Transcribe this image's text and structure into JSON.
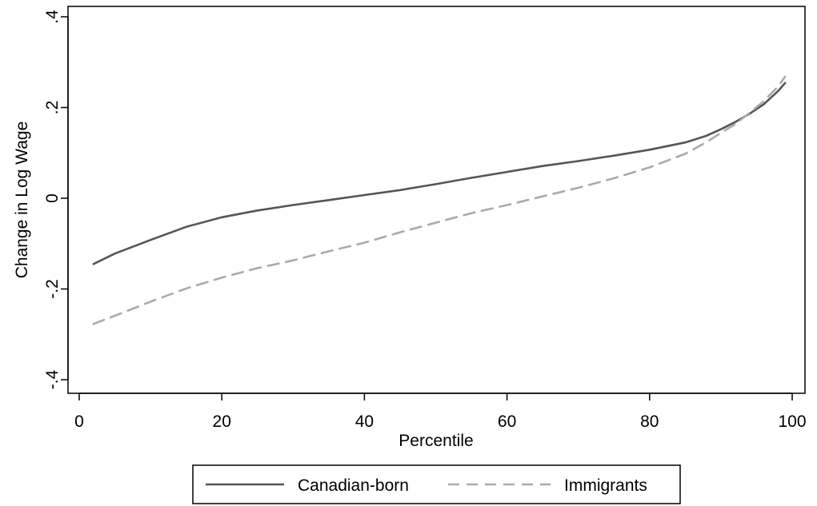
{
  "chart_data": {
    "type": "line",
    "title": "",
    "xlabel": "Percentile",
    "ylabel": "Change in Log Wage",
    "xlim": [
      0,
      100
    ],
    "ylim": [
      -0.4,
      0.4
    ],
    "x_ticks": [
      0,
      20,
      40,
      60,
      80,
      100
    ],
    "x_tick_labels": [
      "0",
      "20",
      "40",
      "60",
      "80",
      "100"
    ],
    "y_ticks": [
      -0.4,
      -0.2,
      0,
      0.2,
      0.4
    ],
    "y_tick_labels": [
      "-.4",
      "-.2",
      "0",
      ".2",
      ".4"
    ],
    "grid": false,
    "legend_position": "bottom",
    "series": [
      {
        "name": "Canadian-born",
        "color": "#555555",
        "style": "solid",
        "x": [
          2,
          5,
          10,
          15,
          20,
          25,
          30,
          35,
          40,
          45,
          50,
          55,
          60,
          65,
          70,
          75,
          80,
          85,
          88,
          90,
          92,
          94,
          96,
          98,
          99
        ],
        "y": [
          -0.145,
          -0.122,
          -0.092,
          -0.063,
          -0.042,
          -0.027,
          -0.015,
          -0.004,
          0.007,
          0.018,
          0.031,
          0.045,
          0.058,
          0.071,
          0.082,
          0.094,
          0.107,
          0.123,
          0.138,
          0.152,
          0.168,
          0.186,
          0.207,
          0.236,
          0.254
        ]
      },
      {
        "name": "Immigrants",
        "color": "#aaaaaa",
        "style": "dashed",
        "x": [
          2,
          5,
          10,
          15,
          20,
          25,
          30,
          35,
          40,
          45,
          50,
          55,
          60,
          65,
          70,
          75,
          80,
          85,
          88,
          90,
          92,
          94,
          96,
          98,
          99
        ],
        "y": [
          -0.277,
          -0.259,
          -0.228,
          -0.199,
          -0.175,
          -0.154,
          -0.137,
          -0.117,
          -0.098,
          -0.075,
          -0.054,
          -0.033,
          -0.015,
          0.004,
          0.023,
          0.044,
          0.068,
          0.098,
          0.124,
          0.144,
          0.163,
          0.188,
          0.214,
          0.246,
          0.268
        ]
      }
    ]
  }
}
